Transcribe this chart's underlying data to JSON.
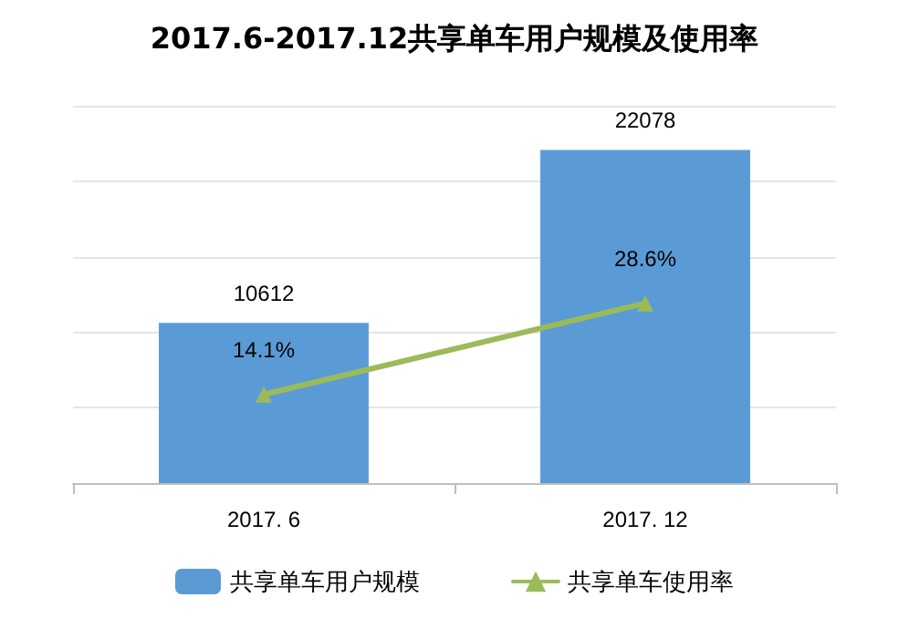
{
  "chart_data": {
    "type": "bar",
    "title": "2017.6-2017.12共享单车用户规模及使用率",
    "categories": [
      "2017. 6",
      "2017. 12"
    ],
    "series": [
      {
        "name": "共享单车用户规模",
        "color": "#5b9bd5",
        "values": [
          10612,
          22078
        ]
      },
      {
        "name": "共享单车使用率",
        "type": "line",
        "axis": "y2",
        "color": "#9bbb59",
        "values": [
          14.1,
          28.6
        ],
        "value_labels": [
          "14.1%",
          "28.6%"
        ],
        "marker": "triangle"
      }
    ],
    "data_labels": true,
    "ylim": [
      0,
      25000
    ],
    "yticks": [
      {
        "value": 0,
        "label": null
      },
      {
        "value": 5000,
        "label": null
      },
      {
        "value": 10000,
        "label": null
      },
      {
        "value": 15000,
        "label": null
      },
      {
        "value": 20000,
        "label": null
      },
      {
        "value": 25000,
        "label": null
      }
    ],
    "y2lim": [
      0,
      60
    ],
    "grid": "y",
    "legend": "bottom",
    "tick_labels": "x"
  }
}
